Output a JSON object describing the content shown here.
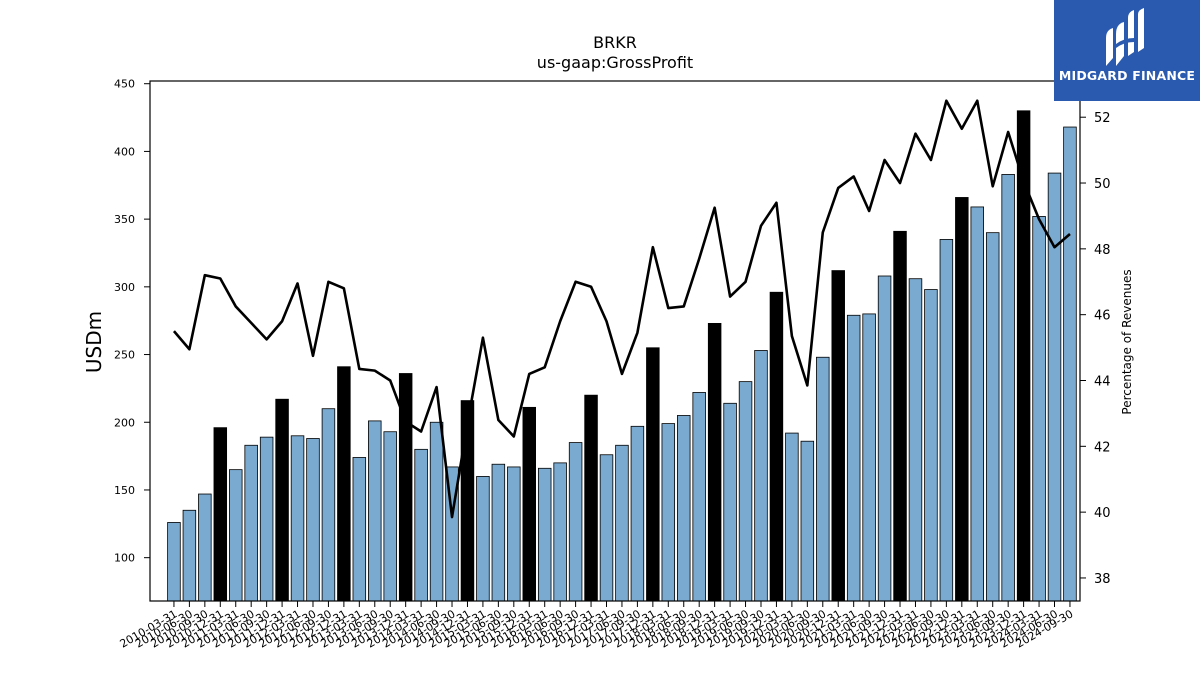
{
  "chart_data": {
    "type": "bar",
    "title": "BRKR",
    "subtitle": "us-gaap:GrossProfit",
    "ylabel": "USDm",
    "y2label": "Percentage of Revenues",
    "ylim": [
      68,
      452
    ],
    "y2lim": [
      37.3,
      53.1
    ],
    "yticks": [
      100,
      150,
      200,
      250,
      300,
      350,
      400,
      450
    ],
    "y2ticks": [
      38,
      40,
      42,
      44,
      46,
      48,
      50,
      52
    ],
    "categories": [
      "2010-03-31",
      "2010-06-30",
      "2010-09-30",
      "2010-12-31",
      "2011-03-31",
      "2011-06-30",
      "2011-09-30",
      "2011-12-31",
      "2012-03-31",
      "2012-06-30",
      "2012-09-30",
      "2012-12-31",
      "2013-03-31",
      "2013-06-30",
      "2013-09-30",
      "2013-12-31",
      "2014-03-31",
      "2014-06-30",
      "2014-09-30",
      "2014-12-31",
      "2015-03-31",
      "2015-06-30",
      "2015-09-30",
      "2015-12-31",
      "2016-03-31",
      "2016-06-30",
      "2016-09-30",
      "2016-12-31",
      "2017-03-31",
      "2017-06-30",
      "2017-09-30",
      "2017-12-31",
      "2018-03-31",
      "2018-06-30",
      "2018-09-30",
      "2018-12-31",
      "2019-03-31",
      "2019-06-30",
      "2019-09-30",
      "2019-12-31",
      "2020-03-31",
      "2020-06-30",
      "2020-09-30",
      "2020-12-31",
      "2021-03-31",
      "2021-06-30",
      "2021-09-30",
      "2021-12-31",
      "2022-03-31",
      "2022-06-30",
      "2022-09-30",
      "2022-12-31",
      "2023-03-31",
      "2023-06-30",
      "2023-09-30",
      "2023-12-31",
      "2024-03-31",
      "2024-06-30",
      "2024-09-30"
    ],
    "values": [
      126,
      135,
      147,
      196,
      165,
      183,
      189,
      217,
      190,
      188,
      210,
      241,
      174,
      201,
      193,
      236,
      180,
      200,
      167,
      216,
      160,
      169,
      167,
      211,
      166,
      170,
      185,
      220,
      176,
      183,
      197,
      255,
      199,
      205,
      222,
      273,
      214,
      230,
      253,
      296,
      192,
      186,
      248,
      312,
      279,
      280,
      308,
      341,
      306,
      298,
      335,
      366,
      359,
      340,
      383,
      430,
      352,
      384,
      418
    ],
    "highlight_color": "#000000",
    "bar_color": "#7aaad0",
    "series": [
      {
        "name": "Percentage of Revenues",
        "type": "line",
        "color": "#000000",
        "values": [
          45.5,
          44.95,
          47.2,
          47.1,
          46.25,
          45.75,
          45.25,
          45.8,
          46.95,
          44.75,
          47.0,
          46.8,
          44.35,
          44.3,
          44.0,
          42.75,
          42.45,
          43.8,
          39.85,
          42.7,
          45.3,
          42.8,
          42.3,
          44.2,
          44.4,
          45.8,
          47.0,
          46.85,
          45.8,
          44.2,
          45.45,
          48.05,
          46.2,
          46.25,
          47.7,
          49.25,
          46.55,
          47.0,
          48.7,
          49.4,
          45.35,
          43.85,
          48.5,
          49.85,
          50.2,
          49.15,
          50.7,
          50.0,
          51.5,
          50.7,
          52.5,
          51.65,
          52.5,
          49.9,
          51.55,
          50.05,
          48.9,
          48.05,
          48.45
        ]
      }
    ],
    "grid": false,
    "legend": "none"
  },
  "logo": {
    "text": "MIDGARD FINANCE",
    "color": "#2a5ab0"
  }
}
